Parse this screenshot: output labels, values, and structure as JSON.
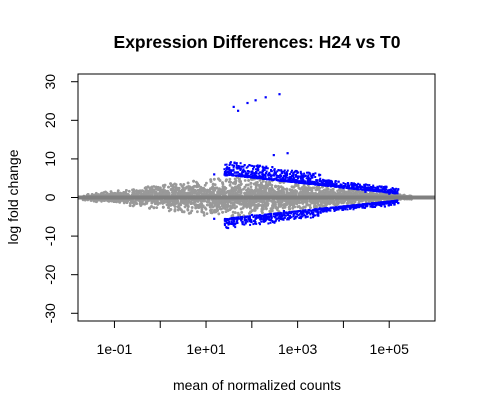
{
  "chart_data": {
    "type": "scatter",
    "title": "Expression Differences: H24 vs T0",
    "xlabel": "mean of normalized counts",
    "ylabel": "log fold change",
    "x_scale": "log10",
    "xlim": [
      0.016,
      1000000
    ],
    "ylim": [
      -32,
      32
    ],
    "x_ticks": [
      0.1,
      1,
      10,
      100,
      1000,
      10000,
      100000
    ],
    "x_tick_labels": [
      "1e-01",
      "",
      "1e+01",
      "",
      "1e+03",
      "",
      "1e+05"
    ],
    "y_ticks": [
      -30,
      -20,
      -10,
      0,
      10,
      20,
      30
    ],
    "y_tick_labels": [
      "-30",
      "-20",
      "-10",
      "0",
      "10",
      "20",
      "30"
    ],
    "grid": false,
    "legend": "none",
    "colors": {
      "not_significant": "#999999",
      "significant": "#0000ff",
      "reference_line": "#808080"
    },
    "series": [
      {
        "points": [
          {
            "x": 0.03,
            "y": 0
          },
          {
            "x": 0.1,
            "y": 0.3
          },
          {
            "x": 0.5,
            "y": 1.0
          },
          {
            "x": 1,
            "y": 1.8
          },
          {
            "x": 3,
            "y": 3.0
          },
          {
            "x": 10,
            "y": 4.2
          },
          {
            "x": 30,
            "y": 4.8
          },
          {
            "x": 100,
            "y": 4.6
          },
          {
            "x": 1000,
            "y": 3.2
          },
          {
            "x": 10000,
            "y": 1.8
          },
          {
            "x": 100000,
            "y": 0.6
          },
          {
            "x": 0.1,
            "y": -0.3
          },
          {
            "x": 1,
            "y": -1.5
          },
          {
            "x": 10,
            "y": -2.8
          },
          {
            "x": 100,
            "y": -3.0
          },
          {
            "x": 1000,
            "y": -2.2
          },
          {
            "x": 10000,
            "y": -1.3
          }
        ]
      },
      {
        "points": [
          {
            "x": 40,
            "y": 23.5
          },
          {
            "x": 50,
            "y": 22.5
          },
          {
            "x": 80,
            "y": 24.5
          },
          {
            "x": 120,
            "y": 25.2
          },
          {
            "x": 200,
            "y": 26.0
          },
          {
            "x": 400,
            "y": 26.8
          },
          {
            "x": 15,
            "y": 6.0
          },
          {
            "x": 30,
            "y": 7.5
          },
          {
            "x": 60,
            "y": 8.0
          },
          {
            "x": 150,
            "y": 6.5
          },
          {
            "x": 300,
            "y": 11.0
          },
          {
            "x": 600,
            "y": 11.5
          },
          {
            "x": 1000,
            "y": 5.5
          },
          {
            "x": 3000,
            "y": 3.5
          },
          {
            "x": 10000,
            "y": 2.5
          },
          {
            "x": 30000,
            "y": 1.5
          },
          {
            "x": 100000,
            "y": 1.0
          },
          {
            "x": 15,
            "y": -5.5
          },
          {
            "x": 40,
            "y": -7.0
          },
          {
            "x": 100,
            "y": -4.5
          },
          {
            "x": 500,
            "y": -3.5
          },
          {
            "x": 3000,
            "y": -2.8
          },
          {
            "x": 20000,
            "y": -2.2
          },
          {
            "x": 80000,
            "y": -2.3
          }
        ]
      }
    ]
  }
}
